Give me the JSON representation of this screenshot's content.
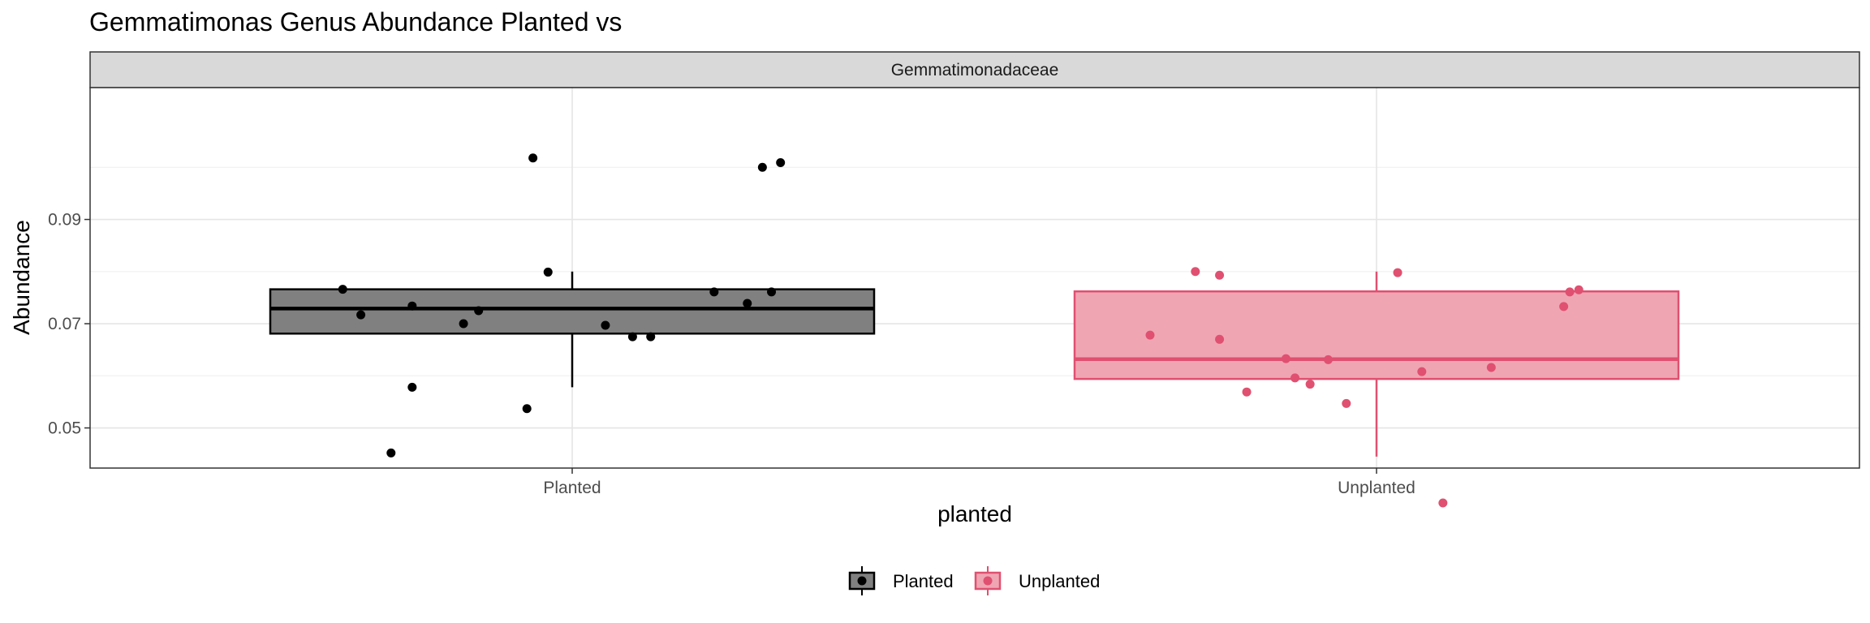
{
  "chart_data": {
    "type": "boxplot",
    "title": "Gemmatimonas Genus Abundance Planted vs",
    "facet": "Gemmatimonadaceae",
    "xlabel": "planted",
    "ylabel": "Abundance",
    "categories": [
      "Planted",
      "Unplanted"
    ],
    "y_ticks": [
      0.05,
      0.07,
      0.09
    ],
    "y_tick_labels": [
      "0.05",
      "0.07",
      "0.09"
    ],
    "ylim": [
      0.0423,
      0.1153
    ],
    "grid": true,
    "legend_position": "bottom",
    "legend": [
      "Planted",
      "Unplanted"
    ],
    "series": [
      {
        "name": "Planted",
        "color": "#000000",
        "fill": "#808080",
        "box": {
          "lower_whisker": 0.0578,
          "q1": 0.0681,
          "median": 0.0729,
          "q3": 0.0766,
          "upper_whisker": 0.08
        },
        "points": [
          {
            "x": -0.76,
            "y": 0.0766
          },
          {
            "x": -0.7,
            "y": 0.0717
          },
          {
            "x": -0.6,
            "y": 0.0452
          },
          {
            "x": -0.53,
            "y": 0.0578
          },
          {
            "x": -0.53,
            "y": 0.0734
          },
          {
            "x": -0.36,
            "y": 0.07
          },
          {
            "x": -0.31,
            "y": 0.0725
          },
          {
            "x": -0.15,
            "y": 0.0537
          },
          {
            "x": -0.13,
            "y": 0.1018
          },
          {
            "x": -0.08,
            "y": 0.0799
          },
          {
            "x": 0.11,
            "y": 0.0697
          },
          {
            "x": 0.2,
            "y": 0.0675
          },
          {
            "x": 0.26,
            "y": 0.0675
          },
          {
            "x": 0.47,
            "y": 0.0761
          },
          {
            "x": 0.58,
            "y": 0.0739
          },
          {
            "x": 0.63,
            "y": 0.1
          },
          {
            "x": 0.66,
            "y": 0.0761
          },
          {
            "x": 0.69,
            "y": 0.1009
          }
        ]
      },
      {
        "name": "Unplanted",
        "color": "#e05070",
        "fill": "#f0a5b3",
        "box": {
          "lower_whisker": 0.0445,
          "q1": 0.0594,
          "median": 0.0632,
          "q3": 0.0762,
          "upper_whisker": 0.08
        },
        "points": [
          {
            "x": -0.75,
            "y": 0.0678
          },
          {
            "x": -0.6,
            "y": 0.08
          },
          {
            "x": -0.52,
            "y": 0.0793
          },
          {
            "x": -0.52,
            "y": 0.067
          },
          {
            "x": -0.43,
            "y": 0.0569
          },
          {
            "x": -0.3,
            "y": 0.0633
          },
          {
            "x": -0.27,
            "y": 0.0596
          },
          {
            "x": -0.22,
            "y": 0.0584
          },
          {
            "x": -0.16,
            "y": 0.0631
          },
          {
            "x": -0.1,
            "y": 0.0547
          },
          {
            "x": 0.07,
            "y": 0.0798
          },
          {
            "x": 0.15,
            "y": 0.0608
          },
          {
            "x": 0.22,
            "y": 0.0356
          },
          {
            "x": 0.38,
            "y": 0.0616
          },
          {
            "x": 0.62,
            "y": 0.0733
          },
          {
            "x": 0.64,
            "y": 0.0761
          },
          {
            "x": 0.67,
            "y": 0.0765
          }
        ]
      }
    ]
  }
}
